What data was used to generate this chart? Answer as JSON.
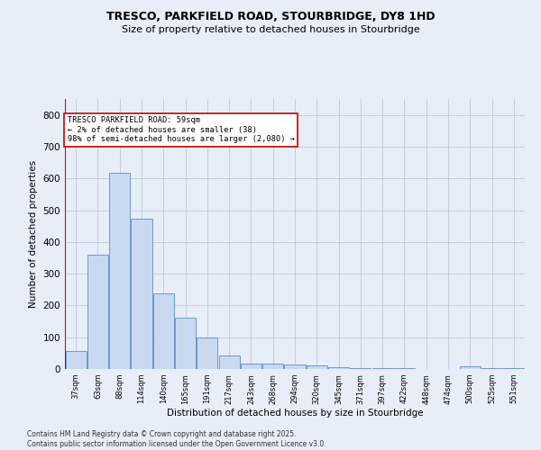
{
  "title": "TRESCO, PARKFIELD ROAD, STOURBRIDGE, DY8 1HD",
  "subtitle": "Size of property relative to detached houses in Stourbridge",
  "xlabel": "Distribution of detached houses by size in Stourbridge",
  "ylabel": "Number of detached properties",
  "footer_line1": "Contains HM Land Registry data © Crown copyright and database right 2025.",
  "footer_line2": "Contains public sector information licensed under the Open Government Licence v3.0.",
  "annotation_line1": "TRESCO PARKFIELD ROAD: 59sqm",
  "annotation_line2": "← 2% of detached houses are smaller (38)",
  "annotation_line3": "98% of semi-detached houses are larger (2,080) →",
  "bar_color": "#c9d9f0",
  "bar_edge_color": "#5b8cc8",
  "grid_color": "#c0c8d8",
  "bg_color": "#e8eef8",
  "ref_line_color": "#cc0000",
  "annotation_box_color": "#cc0000",
  "categories": [
    "37sqm",
    "63sqm",
    "88sqm",
    "114sqm",
    "140sqm",
    "165sqm",
    "191sqm",
    "217sqm",
    "243sqm",
    "268sqm",
    "294sqm",
    "320sqm",
    "345sqm",
    "371sqm",
    "397sqm",
    "422sqm",
    "448sqm",
    "474sqm",
    "500sqm",
    "525sqm",
    "551sqm"
  ],
  "values": [
    58,
    360,
    617,
    473,
    237,
    162,
    98,
    43,
    18,
    18,
    15,
    12,
    5,
    3,
    2,
    2,
    0,
    0,
    8,
    2,
    3
  ],
  "ylim": [
    0,
    850
  ],
  "yticks": [
    0,
    100,
    200,
    300,
    400,
    500,
    600,
    700,
    800
  ]
}
